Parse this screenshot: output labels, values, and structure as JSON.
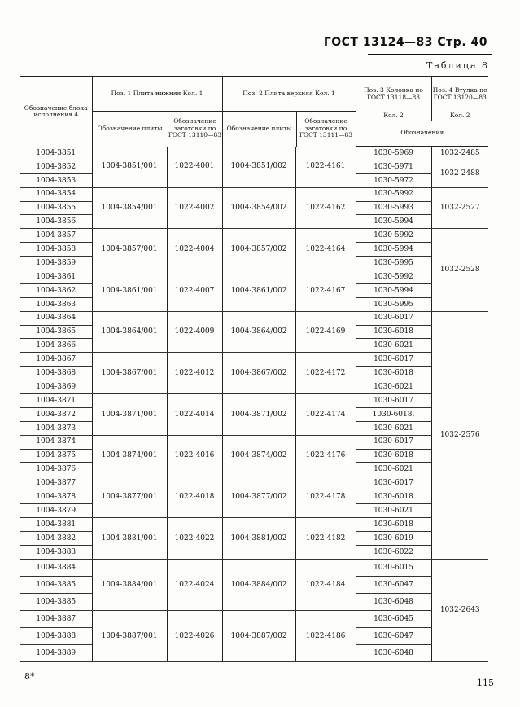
{
  "header": {
    "title": "ГОСТ 13124—83 Стр. 40",
    "table_name": "Таблица 8"
  },
  "columns": {
    "block": "Обозначение блока исполнения 4",
    "pos1": "Поз. 1 Плита нижняя Кол. 1",
    "pos1_plate": "Обозначение плиты",
    "pos1_blank": "Обозначение заготовки по ГОСТ 13110—83",
    "pos2": "Поз. 2 Плита верхняя Кол. 1",
    "pos2_plate": "Обозначение плиты",
    "pos2_blank": "Обозначение заготовки по ГОСТ 13111—83",
    "pos3": "Поз. 3 Колонка по ГОСТ 13118—83",
    "pos3_qty": "Кол. 2",
    "pos4": "Поз. 4 Втулка по ГОСТ 13120—83",
    "pos4_qty": "Кол. 2",
    "designations": "Обозначения"
  },
  "rows": [
    {
      "block": "1004-3851",
      "pos3": "1030-5969"
    },
    {
      "block": "1004-3852",
      "pos3": "1030-5971"
    },
    {
      "block": "1004-3853",
      "pos3": "1030-5972"
    },
    {
      "block": "1004-3854",
      "pos3": "1030-5992"
    },
    {
      "block": "1004-3855",
      "pos3": "1030-5993"
    },
    {
      "block": "1004-3856",
      "pos3": "1030-5994"
    },
    {
      "block": "1004-3857",
      "pos3": "1030-5992"
    },
    {
      "block": "1004-3858",
      "pos3": "1030-5994"
    },
    {
      "block": "1004-3859",
      "pos3": "1030-5995"
    },
    {
      "block": "1004-3861",
      "pos3": "1030-5992"
    },
    {
      "block": "1004-3862",
      "pos3": "1030-5994"
    },
    {
      "block": "1004-3863",
      "pos3": "1030-5995"
    },
    {
      "block": "1004-3864",
      "pos3": "1030-6017"
    },
    {
      "block": "1004-3865",
      "pos3": "1030-6018"
    },
    {
      "block": "1004-3866",
      "pos3": "1030-6021"
    },
    {
      "block": "1004-3867",
      "pos3": "1030-6017"
    },
    {
      "block": "1004-3868",
      "pos3": "1030-6018"
    },
    {
      "block": "1004-3869",
      "pos3": "1030-6021"
    },
    {
      "block": "1004-3871",
      "pos3": "1030-6017"
    },
    {
      "block": "1004-3872",
      "pos3": "1030-6018,"
    },
    {
      "block": "1004-3873",
      "pos3": "1030-6021"
    },
    {
      "block": "1004-3874",
      "pos3": "1030-6017"
    },
    {
      "block": "1004-3875",
      "pos3": "1030-6018"
    },
    {
      "block": "1004-3876",
      "pos3": "1030-6021"
    },
    {
      "block": "1004-3877",
      "pos3": "1030-6017"
    },
    {
      "block": "1004-3878",
      "pos3": "1030-6018"
    },
    {
      "block": "1004-3879",
      "pos3": "1030-6021"
    },
    {
      "block": "1004-3881",
      "pos3": "1030-6018"
    },
    {
      "block": "1004-3882",
      "pos3": "1030-6019"
    },
    {
      "block": "1004-3883",
      "pos3": "1030-6022"
    },
    {
      "block": "1004-3884",
      "pos3": "1030-6015"
    },
    {
      "block": "1004-3885",
      "pos3": "1030-6047"
    },
    {
      "block": "1004-3885",
      "pos3": "1030-6048"
    },
    {
      "block": "1004-3887",
      "pos3": "1030-6045"
    },
    {
      "block": "1004-3888",
      "pos3": "1030-6047"
    },
    {
      "block": "1004-3889",
      "pos3": "1030-6048"
    }
  ],
  "groups": [
    {
      "plate1": "1004-3851/001",
      "blank1": "1022-4001",
      "plate2": "1004-3851/002",
      "blank2": "1022-4161"
    },
    {
      "plate1": "1004-3854/001",
      "blank1": "1022-4002",
      "plate2": "1004-3854/002",
      "blank2": "1022-4162"
    },
    {
      "plate1": "1004-3857/001",
      "blank1": "1022-4004",
      "plate2": "1004-3857/002",
      "blank2": "1022-4164"
    },
    {
      "plate1": "1004-3861/001",
      "blank1": "1022-4007",
      "plate2": "1004-3861/002",
      "blank2": "1022-4167"
    },
    {
      "plate1": "1004-3864/001",
      "blank1": "1022-4009",
      "plate2": "1004-3864/002",
      "blank2": "1022-4169"
    },
    {
      "plate1": "1004-3867/001",
      "blank1": "1022-4012",
      "plate2": "1004-3867/002",
      "blank2": "1022-4172"
    },
    {
      "plate1": "1004-3871/001",
      "blank1": "1022-4014",
      "plate2": "1004-3871/002",
      "blank2": "1022-4174"
    },
    {
      "plate1": "1004-3874/001",
      "blank1": "1022-4016",
      "plate2": "1004-3874/002",
      "blank2": "1022-4176"
    },
    {
      "plate1": "1004-3877/001",
      "blank1": "1022-4018",
      "plate2": "1004-3877/002",
      "blank2": "1022-4178"
    },
    {
      "plate1": "1004-3881/001",
      "blank1": "1022-4022",
      "plate2": "1004-3881/002",
      "blank2": "1022-4182"
    },
    {
      "plate1": "1004-3884/001",
      "blank1": "1022-4024",
      "plate2": "1004-3884/002",
      "blank2": "1022-4184"
    },
    {
      "plate1": "1004-3887/001",
      "blank1": "1022-4026",
      "plate2": "1004-3887/002",
      "blank2": "1022-4186"
    }
  ],
  "pos4": [
    {
      "value": "1032-2485",
      "span": 1
    },
    {
      "value": "1032-2488",
      "span": 2
    },
    {
      "value": "1032-2527",
      "span": 3
    },
    {
      "value": "1032-2528",
      "span": 6
    },
    {
      "value": "1032-2576",
      "span": 18
    },
    {
      "value": "1032-2643",
      "span": 6
    }
  ],
  "footer": {
    "left": "8*",
    "right": "115"
  }
}
